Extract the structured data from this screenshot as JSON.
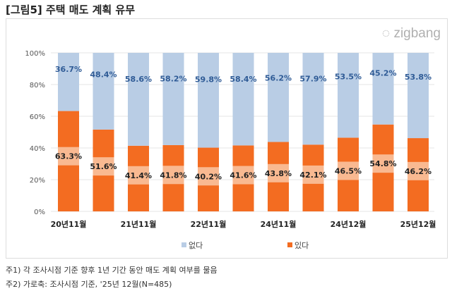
{
  "title": "[그림5] 주택 매도 계획 유무",
  "logo": "zigbang",
  "notes": [
    "주1) 각 조사시점 기준 향후 1년 기간 동안 매도 계획 여부를 물음",
    "주2) 가로축: 조사시점 기준, '25년 12월(N=485)"
  ],
  "chart_data": {
    "type": "bar",
    "stacked": true,
    "x_tick_labels": [
      "20년11월",
      "",
      "21년11월",
      "",
      "22년11월",
      "",
      "24년11월",
      "",
      "24년12월",
      "",
      "25년12월"
    ],
    "y_ticks": [
      "0%",
      "20%",
      "40%",
      "60%",
      "80%",
      "100%"
    ],
    "ylim": [
      0,
      100
    ],
    "legend_position": "bottom",
    "series": [
      {
        "name": "있다",
        "color": "#f36c21",
        "values": [
          63.3,
          51.6,
          41.4,
          41.8,
          40.2,
          41.6,
          43.8,
          42.1,
          46.5,
          54.8,
          46.2
        ],
        "labels": [
          "63.3%",
          "51.6%",
          "41.4%",
          "41.8%",
          "40.2%",
          "41.6%",
          "43.8%",
          "42.1%",
          "46.5%",
          "54.8%",
          "46.2%"
        ]
      },
      {
        "name": "없다",
        "color": "#b9cde5",
        "values": [
          36.7,
          48.4,
          58.6,
          58.2,
          59.8,
          58.4,
          56.2,
          57.9,
          53.5,
          45.2,
          53.8
        ],
        "labels": [
          "36.7%",
          "48.4%",
          "58.6%",
          "58.2%",
          "59.8%",
          "58.4%",
          "56.2%",
          "57.9%",
          "53.5%",
          "45.2%",
          "53.8%"
        ]
      }
    ]
  }
}
